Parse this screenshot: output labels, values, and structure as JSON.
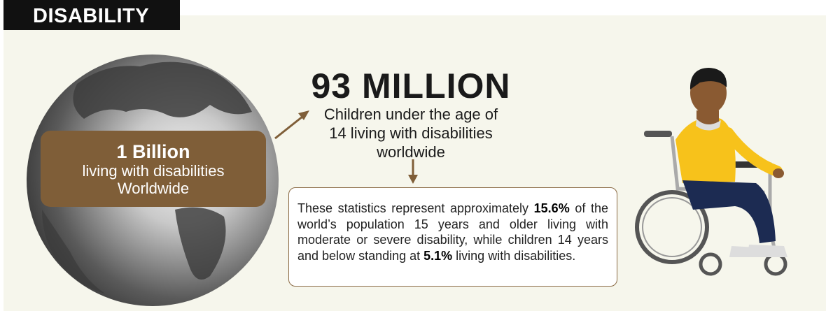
{
  "header": {
    "title": "DISABILITY"
  },
  "globe_card": {
    "figure": "1 Billion",
    "lines": [
      "living with disabilities",
      "Worldwide"
    ]
  },
  "children": {
    "figure": "93 MILLION",
    "lines": [
      "Children under the age of",
      "14 living with disabilities",
      "worldwide"
    ]
  },
  "note": {
    "parts": [
      {
        "text": "These statistics represent approximately ",
        "bold": false
      },
      {
        "text": "15.6%",
        "bold": true
      },
      {
        "text": " of the world’s population 15 years and older living with moderate or severe disability, while children 14 years and below standing at ",
        "bold": false
      },
      {
        "text": "5.1%",
        "bold": true
      },
      {
        "text": " living with disabilities.",
        "bold": false
      }
    ]
  }
}
